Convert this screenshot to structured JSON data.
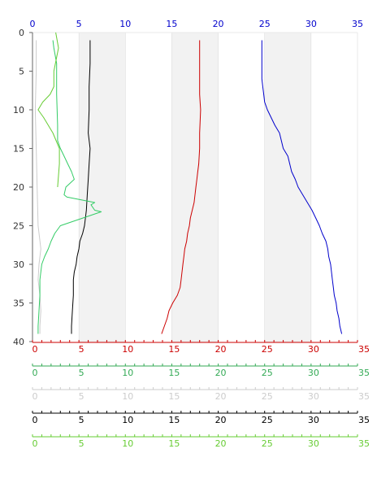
{
  "chart_data": {
    "type": "line",
    "orientation": "depth-profile",
    "y_axis": {
      "range": [
        0,
        40
      ],
      "ticks": [
        "0",
        "5",
        "10",
        "15",
        "20",
        "25",
        "30",
        "35",
        "40"
      ],
      "color": "#333333"
    },
    "x_range": [
      0,
      35
    ],
    "top_axis": {
      "color": "#0000cc",
      "ticks": [
        "0",
        "5",
        "10",
        "15",
        "20",
        "25",
        "30",
        "35"
      ]
    },
    "bottom_axes": [
      {
        "color": "#cc0000",
        "ticks": [
          "0",
          "5",
          "10",
          "15",
          "20",
          "25",
          "30",
          "35"
        ]
      },
      {
        "color": "#33aa55",
        "ticks": [
          "0",
          "5",
          "10",
          "15",
          "20",
          "25",
          "30",
          "35"
        ]
      },
      {
        "color": "#cccccc",
        "ticks": [
          "0",
          "5",
          "10",
          "15",
          "20",
          "25",
          "30",
          "35"
        ]
      },
      {
        "color": "#000000",
        "ticks": [
          "0",
          "5",
          "10",
          "15",
          "20",
          "25",
          "30",
          "35"
        ]
      },
      {
        "color": "#66cc33",
        "ticks": [
          "0",
          "5",
          "10",
          "15",
          "20",
          "25",
          "30",
          "35"
        ]
      }
    ],
    "shaded_bands": [
      [
        5,
        10
      ],
      [
        15,
        20
      ],
      [
        25,
        30
      ]
    ],
    "series": [
      {
        "color": "#0000cc",
        "points": [
          [
            24.7,
            1
          ],
          [
            24.7,
            6
          ],
          [
            24.8,
            7
          ],
          [
            24.9,
            8
          ],
          [
            25.0,
            9
          ],
          [
            25.3,
            10
          ],
          [
            25.7,
            11
          ],
          [
            26.1,
            12
          ],
          [
            26.6,
            13
          ],
          [
            26.8,
            14
          ],
          [
            27.0,
            15
          ],
          [
            27.5,
            16
          ],
          [
            27.7,
            17
          ],
          [
            27.9,
            18
          ],
          [
            28.3,
            19
          ],
          [
            28.6,
            20
          ],
          [
            29.1,
            21
          ],
          [
            29.6,
            22
          ],
          [
            30.1,
            23
          ],
          [
            30.5,
            24
          ],
          [
            30.9,
            25
          ],
          [
            31.2,
            26
          ],
          [
            31.6,
            27
          ],
          [
            31.8,
            28
          ],
          [
            31.9,
            29
          ],
          [
            32.1,
            30
          ],
          [
            32.2,
            31
          ],
          [
            32.3,
            32
          ],
          [
            32.4,
            33
          ],
          [
            32.5,
            34
          ],
          [
            32.7,
            35
          ],
          [
            32.8,
            36
          ],
          [
            33.0,
            37
          ],
          [
            33.1,
            38
          ],
          [
            33.3,
            39
          ]
        ]
      },
      {
        "color": "#cc0000",
        "points": [
          [
            18.0,
            1
          ],
          [
            18.0,
            5
          ],
          [
            18.0,
            8
          ],
          [
            18.1,
            10
          ],
          [
            18.0,
            13
          ],
          [
            18.0,
            15
          ],
          [
            17.9,
            17
          ],
          [
            17.8,
            18
          ],
          [
            17.7,
            19
          ],
          [
            17.6,
            20
          ],
          [
            17.5,
            21
          ],
          [
            17.4,
            22
          ],
          [
            17.2,
            23
          ],
          [
            17.0,
            24
          ],
          [
            16.9,
            25
          ],
          [
            16.7,
            26
          ],
          [
            16.6,
            27
          ],
          [
            16.4,
            28
          ],
          [
            16.3,
            29
          ],
          [
            16.2,
            30
          ],
          [
            16.1,
            31
          ],
          [
            16.0,
            32
          ],
          [
            15.9,
            33
          ],
          [
            15.6,
            34
          ],
          [
            15.1,
            35
          ],
          [
            14.7,
            36
          ],
          [
            14.5,
            37
          ],
          [
            14.2,
            38
          ],
          [
            13.9,
            39
          ]
        ]
      },
      {
        "color": "#000000",
        "points": [
          [
            6.2,
            1
          ],
          [
            6.2,
            4
          ],
          [
            6.1,
            7
          ],
          [
            6.1,
            10
          ],
          [
            6.0,
            13
          ],
          [
            6.2,
            15
          ],
          [
            6.1,
            17
          ],
          [
            6.0,
            19
          ],
          [
            5.9,
            21
          ],
          [
            5.8,
            23
          ],
          [
            5.6,
            25
          ],
          [
            5.4,
            26
          ],
          [
            5.1,
            27
          ],
          [
            5.0,
            28
          ],
          [
            4.8,
            29
          ],
          [
            4.7,
            30
          ],
          [
            4.5,
            31
          ],
          [
            4.4,
            32
          ],
          [
            4.4,
            34
          ],
          [
            4.3,
            36
          ],
          [
            4.2,
            38
          ],
          [
            4.2,
            39
          ]
        ]
      },
      {
        "color": "#cccccc",
        "points": [
          [
            0.4,
            1
          ],
          [
            0.4,
            5
          ],
          [
            0.3,
            10
          ],
          [
            0.4,
            15
          ],
          [
            0.5,
            20
          ],
          [
            0.6,
            25
          ],
          [
            0.9,
            28
          ],
          [
            0.7,
            30
          ],
          [
            0.6,
            32
          ],
          [
            0.8,
            34
          ],
          [
            0.9,
            36
          ],
          [
            0.8,
            38
          ],
          [
            0.8,
            39
          ]
        ]
      },
      {
        "color": "#33cc66",
        "points": [
          [
            2.2,
            1
          ],
          [
            2.3,
            2
          ],
          [
            2.6,
            4
          ],
          [
            2.6,
            8
          ],
          [
            2.7,
            12
          ],
          [
            2.7,
            14
          ],
          [
            3.0,
            15
          ],
          [
            3.4,
            16
          ],
          [
            3.8,
            17
          ],
          [
            4.2,
            18
          ],
          [
            4.5,
            19
          ],
          [
            3.6,
            20
          ],
          [
            3.4,
            21
          ],
          [
            3.7,
            21.3
          ],
          [
            6.7,
            22
          ],
          [
            6.3,
            22.3
          ],
          [
            6.7,
            23
          ],
          [
            7.4,
            23.2
          ],
          [
            3.0,
            25
          ],
          [
            2.4,
            26
          ],
          [
            2.0,
            27
          ],
          [
            1.7,
            28
          ],
          [
            1.3,
            29
          ],
          [
            1.0,
            30
          ],
          [
            0.8,
            32
          ],
          [
            0.8,
            34
          ],
          [
            0.7,
            36
          ],
          [
            0.6,
            38
          ],
          [
            0.6,
            39
          ]
        ]
      },
      {
        "color": "#66cc33",
        "points": [
          [
            2.5,
            0
          ],
          [
            2.8,
            2
          ],
          [
            2.3,
            5
          ],
          [
            2.3,
            7
          ],
          [
            1.9,
            8
          ],
          [
            1.1,
            9
          ],
          [
            0.6,
            10
          ],
          [
            1.2,
            11
          ],
          [
            2.2,
            13
          ],
          [
            2.9,
            15
          ],
          [
            2.9,
            17
          ],
          [
            2.7,
            20
          ]
        ]
      }
    ]
  }
}
